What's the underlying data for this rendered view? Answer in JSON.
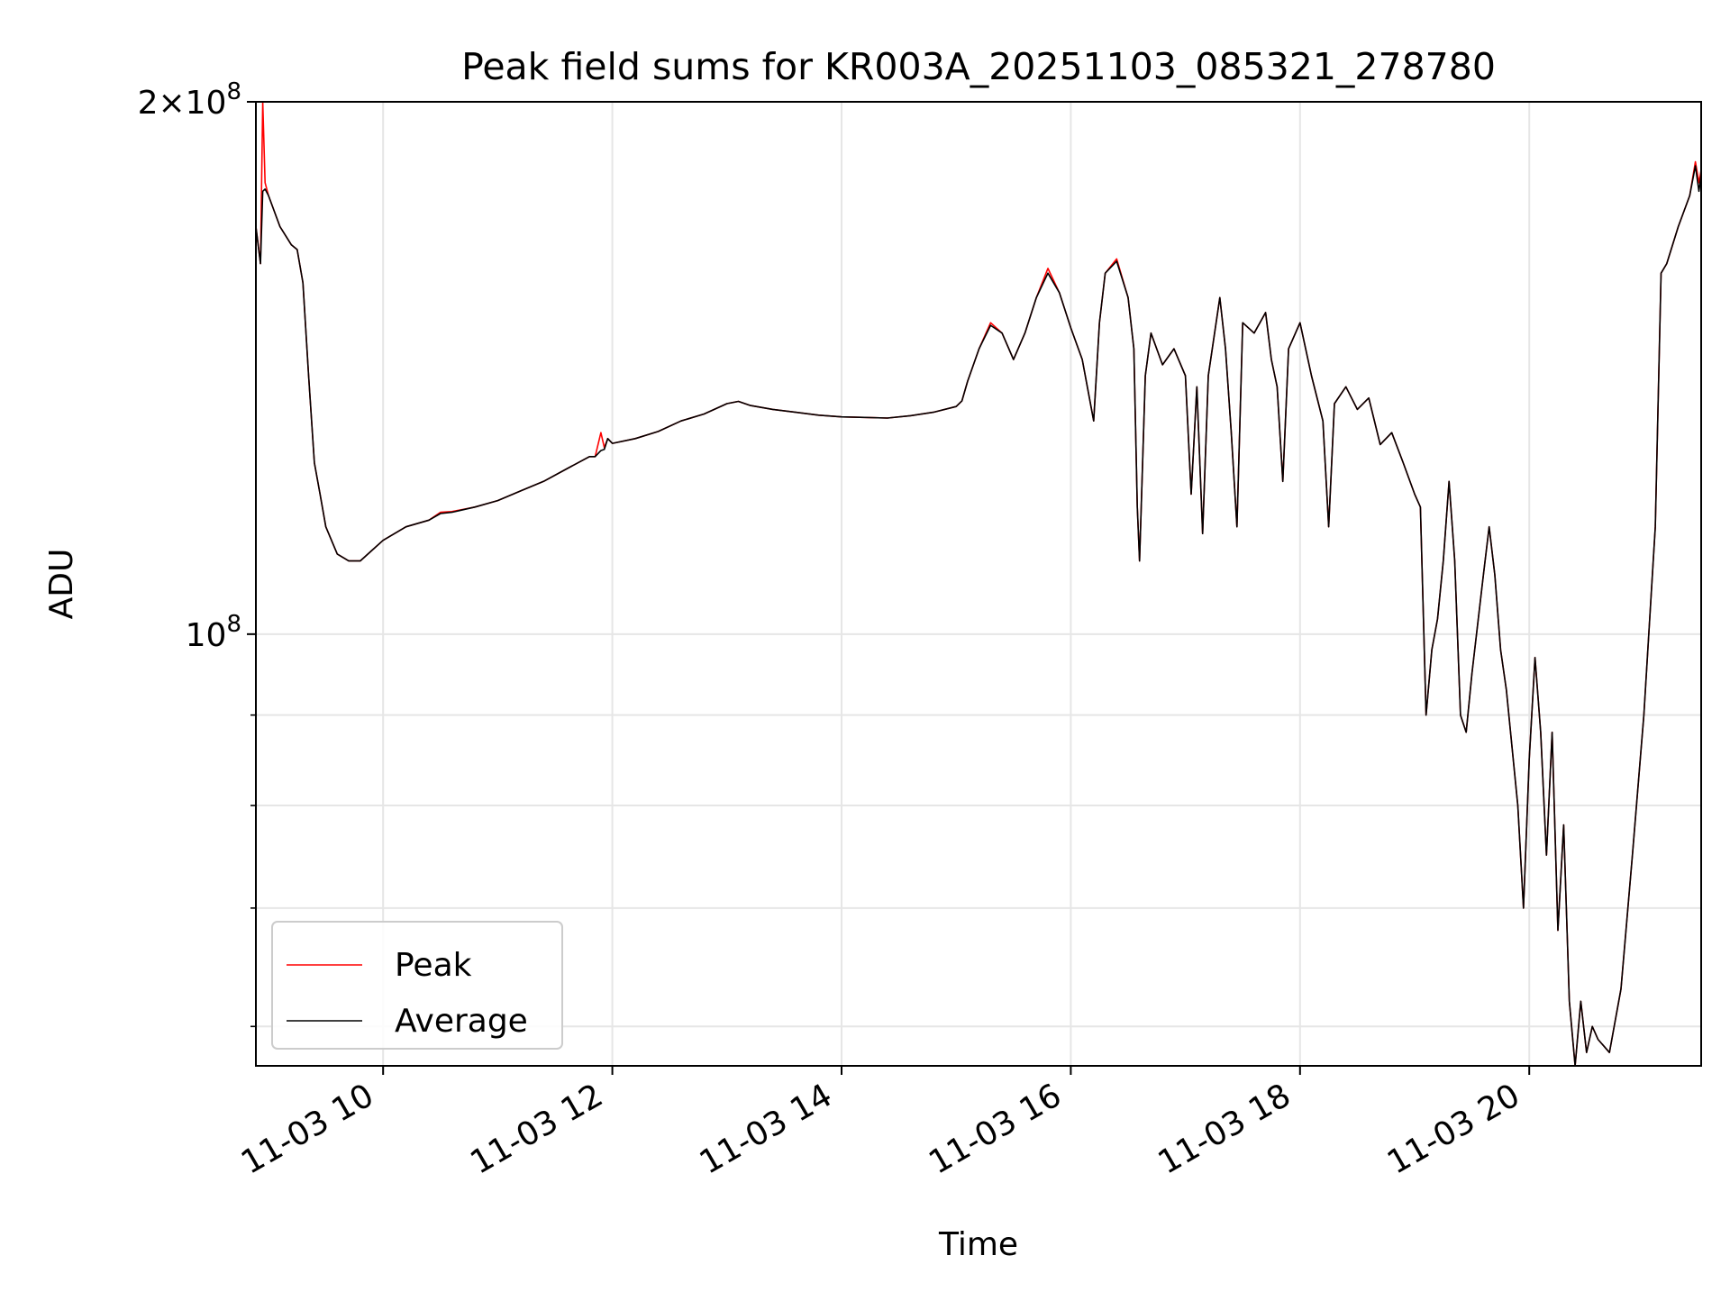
{
  "chart_data": {
    "type": "line",
    "title": "Peak field sums for KR003A_20251103_085321_278780",
    "xlabel": "Time",
    "ylabel": "ADU",
    "yscale": "log",
    "ylim": [
      57000000,
      200000000
    ],
    "xlim_hours": [
      8.89,
      21.5
    ],
    "grid": true,
    "legend_position": "lower-left",
    "x_ticks": [
      {
        "hour": 10,
        "label": "11-03 10"
      },
      {
        "hour": 12,
        "label": "11-03 12"
      },
      {
        "hour": 14,
        "label": "11-03 14"
      },
      {
        "hour": 16,
        "label": "11-03 16"
      },
      {
        "hour": 18,
        "label": "11-03 18"
      },
      {
        "hour": 20,
        "label": "11-03 20"
      }
    ],
    "y_major_ticks": [
      {
        "value": 100000000,
        "mantissa": "",
        "base": "10",
        "exp": "8"
      },
      {
        "value": 200000000,
        "mantissa": "2×",
        "base": "10",
        "exp": "8"
      }
    ],
    "y_minor_ticks": [
      60000000,
      70000000,
      80000000,
      90000000
    ],
    "series": [
      {
        "name": "Peak",
        "color": "#ff0000",
        "points": [
          [
            8.89,
            170000000
          ],
          [
            8.93,
            162000000
          ],
          [
            8.95,
            200000000
          ],
          [
            8.97,
            180000000
          ],
          [
            9.0,
            177000000
          ],
          [
            9.1,
            170000000
          ],
          [
            9.2,
            166000000
          ],
          [
            9.25,
            165000000
          ],
          [
            9.3,
            158000000
          ],
          [
            9.35,
            140000000
          ],
          [
            9.4,
            125000000
          ],
          [
            9.45,
            120000000
          ],
          [
            9.5,
            115000000
          ],
          [
            9.6,
            111000000
          ],
          [
            9.7,
            110000000
          ],
          [
            9.8,
            110000000
          ],
          [
            9.9,
            111500000
          ],
          [
            10.0,
            113000000
          ],
          [
            10.2,
            115000000
          ],
          [
            10.4,
            116000000
          ],
          [
            10.5,
            117200000
          ],
          [
            10.6,
            117300000
          ],
          [
            10.8,
            118000000
          ],
          [
            11.0,
            119000000
          ],
          [
            11.2,
            120500000
          ],
          [
            11.4,
            122000000
          ],
          [
            11.6,
            124000000
          ],
          [
            11.8,
            126000000
          ],
          [
            11.85,
            126000000
          ],
          [
            11.9,
            130000000
          ],
          [
            11.93,
            127500000
          ],
          [
            11.96,
            129000000
          ],
          [
            12.0,
            128200000
          ],
          [
            12.2,
            129000000
          ],
          [
            12.4,
            130200000
          ],
          [
            12.6,
            132000000
          ],
          [
            12.8,
            133200000
          ],
          [
            13.0,
            135000000
          ],
          [
            13.1,
            135400000
          ],
          [
            13.2,
            134700000
          ],
          [
            13.4,
            134000000
          ],
          [
            13.6,
            133500000
          ],
          [
            13.8,
            133000000
          ],
          [
            14.0,
            132700000
          ],
          [
            14.2,
            132600000
          ],
          [
            14.4,
            132500000
          ],
          [
            14.6,
            132900000
          ],
          [
            14.8,
            133500000
          ],
          [
            15.0,
            134500000
          ],
          [
            15.05,
            135500000
          ],
          [
            15.1,
            139000000
          ],
          [
            15.2,
            145000000
          ],
          [
            15.3,
            150000000
          ],
          [
            15.4,
            148000000
          ],
          [
            15.5,
            143000000
          ],
          [
            15.6,
            148000000
          ],
          [
            15.7,
            155000000
          ],
          [
            15.8,
            161000000
          ],
          [
            15.9,
            156000000
          ],
          [
            16.0,
            149000000
          ],
          [
            16.1,
            143000000
          ],
          [
            16.2,
            132000000
          ],
          [
            16.25,
            150000000
          ],
          [
            16.3,
            160000000
          ],
          [
            16.4,
            163000000
          ],
          [
            16.5,
            155000000
          ],
          [
            16.55,
            145000000
          ],
          [
            16.58,
            118000000
          ],
          [
            16.6,
            110000000
          ],
          [
            16.65,
            140000000
          ],
          [
            16.7,
            148000000
          ],
          [
            16.8,
            142000000
          ],
          [
            16.9,
            145000000
          ],
          [
            17.0,
            140000000
          ],
          [
            17.05,
            120000000
          ],
          [
            17.1,
            138000000
          ],
          [
            17.15,
            114000000
          ],
          [
            17.2,
            140000000
          ],
          [
            17.3,
            155000000
          ],
          [
            17.35,
            145000000
          ],
          [
            17.4,
            130000000
          ],
          [
            17.45,
            115000000
          ],
          [
            17.5,
            150000000
          ],
          [
            17.6,
            148000000
          ],
          [
            17.7,
            152000000
          ],
          [
            17.75,
            143000000
          ],
          [
            17.8,
            138000000
          ],
          [
            17.85,
            122000000
          ],
          [
            17.9,
            145000000
          ],
          [
            18.0,
            150000000
          ],
          [
            18.1,
            140000000
          ],
          [
            18.2,
            132000000
          ],
          [
            18.25,
            115000000
          ],
          [
            18.3,
            135000000
          ],
          [
            18.4,
            138000000
          ],
          [
            18.5,
            134000000
          ],
          [
            18.6,
            136000000
          ],
          [
            18.7,
            128000000
          ],
          [
            18.8,
            130000000
          ],
          [
            18.9,
            125000000
          ],
          [
            19.0,
            120000000
          ],
          [
            19.05,
            118000000
          ],
          [
            19.1,
            90000000
          ],
          [
            19.15,
            98000000
          ],
          [
            19.2,
            102000000
          ],
          [
            19.25,
            110000000
          ],
          [
            19.3,
            122000000
          ],
          [
            19.35,
            110000000
          ],
          [
            19.4,
            90000000
          ],
          [
            19.45,
            88000000
          ],
          [
            19.5,
            95000000
          ],
          [
            19.6,
            108000000
          ],
          [
            19.65,
            115000000
          ],
          [
            19.7,
            108000000
          ],
          [
            19.75,
            98000000
          ],
          [
            19.8,
            93000000
          ],
          [
            19.9,
            80000000
          ],
          [
            19.95,
            70000000
          ],
          [
            20.0,
            85000000
          ],
          [
            20.05,
            97000000
          ],
          [
            20.1,
            88000000
          ],
          [
            20.15,
            75000000
          ],
          [
            20.2,
            88000000
          ],
          [
            20.25,
            68000000
          ],
          [
            20.3,
            78000000
          ],
          [
            20.35,
            62000000
          ],
          [
            20.4,
            57000000
          ],
          [
            20.45,
            62000000
          ],
          [
            20.5,
            58000000
          ],
          [
            20.55,
            60000000
          ],
          [
            20.6,
            59000000
          ],
          [
            20.7,
            58000000
          ],
          [
            20.8,
            63000000
          ],
          [
            20.9,
            75000000
          ],
          [
            21.0,
            90000000
          ],
          [
            21.1,
            115000000
          ],
          [
            21.15,
            160000000
          ],
          [
            21.2,
            162000000
          ],
          [
            21.3,
            170000000
          ],
          [
            21.4,
            177000000
          ],
          [
            21.45,
            185000000
          ],
          [
            21.48,
            180000000
          ],
          [
            21.5,
            183000000
          ]
        ]
      },
      {
        "name": "Average",
        "color": "#000000",
        "points": [
          [
            8.89,
            170000000
          ],
          [
            8.93,
            162000000
          ],
          [
            8.95,
            178000000
          ],
          [
            8.97,
            178500000
          ],
          [
            9.0,
            177000000
          ],
          [
            9.1,
            170000000
          ],
          [
            9.2,
            166000000
          ],
          [
            9.25,
            165000000
          ],
          [
            9.3,
            158000000
          ],
          [
            9.35,
            140000000
          ],
          [
            9.4,
            125000000
          ],
          [
            9.45,
            120000000
          ],
          [
            9.5,
            115000000
          ],
          [
            9.6,
            111000000
          ],
          [
            9.7,
            110000000
          ],
          [
            9.8,
            110000000
          ],
          [
            9.9,
            111500000
          ],
          [
            10.0,
            113000000
          ],
          [
            10.2,
            115000000
          ],
          [
            10.4,
            116000000
          ],
          [
            10.5,
            117000000
          ],
          [
            10.6,
            117200000
          ],
          [
            10.8,
            118000000
          ],
          [
            11.0,
            119000000
          ],
          [
            11.2,
            120500000
          ],
          [
            11.4,
            122000000
          ],
          [
            11.6,
            124000000
          ],
          [
            11.8,
            126000000
          ],
          [
            11.85,
            126000000
          ],
          [
            11.9,
            127000000
          ],
          [
            11.93,
            127200000
          ],
          [
            11.96,
            129000000
          ],
          [
            12.0,
            128200000
          ],
          [
            12.2,
            129000000
          ],
          [
            12.4,
            130200000
          ],
          [
            12.6,
            132000000
          ],
          [
            12.8,
            133200000
          ],
          [
            13.0,
            135000000
          ],
          [
            13.1,
            135400000
          ],
          [
            13.2,
            134700000
          ],
          [
            13.4,
            134000000
          ],
          [
            13.6,
            133500000
          ],
          [
            13.8,
            133000000
          ],
          [
            14.0,
            132700000
          ],
          [
            14.2,
            132600000
          ],
          [
            14.4,
            132500000
          ],
          [
            14.6,
            132900000
          ],
          [
            14.8,
            133500000
          ],
          [
            15.0,
            134500000
          ],
          [
            15.05,
            135500000
          ],
          [
            15.1,
            139000000
          ],
          [
            15.2,
            145000000
          ],
          [
            15.3,
            149500000
          ],
          [
            15.4,
            148000000
          ],
          [
            15.5,
            143000000
          ],
          [
            15.6,
            148000000
          ],
          [
            15.7,
            155000000
          ],
          [
            15.8,
            160000000
          ],
          [
            15.9,
            156000000
          ],
          [
            16.0,
            149000000
          ],
          [
            16.1,
            143000000
          ],
          [
            16.2,
            132000000
          ],
          [
            16.25,
            150000000
          ],
          [
            16.3,
            160000000
          ],
          [
            16.4,
            162500000
          ],
          [
            16.5,
            155000000
          ],
          [
            16.55,
            145000000
          ],
          [
            16.58,
            118000000
          ],
          [
            16.6,
            110000000
          ],
          [
            16.65,
            140000000
          ],
          [
            16.7,
            148000000
          ],
          [
            16.8,
            142000000
          ],
          [
            16.9,
            145000000
          ],
          [
            17.0,
            140000000
          ],
          [
            17.05,
            120000000
          ],
          [
            17.1,
            138000000
          ],
          [
            17.15,
            114000000
          ],
          [
            17.2,
            140000000
          ],
          [
            17.3,
            155000000
          ],
          [
            17.35,
            145000000
          ],
          [
            17.4,
            130000000
          ],
          [
            17.45,
            115000000
          ],
          [
            17.5,
            150000000
          ],
          [
            17.6,
            148000000
          ],
          [
            17.7,
            152000000
          ],
          [
            17.75,
            143000000
          ],
          [
            17.8,
            138000000
          ],
          [
            17.85,
            122000000
          ],
          [
            17.9,
            145000000
          ],
          [
            18.0,
            150000000
          ],
          [
            18.1,
            140000000
          ],
          [
            18.2,
            132000000
          ],
          [
            18.25,
            115000000
          ],
          [
            18.3,
            135000000
          ],
          [
            18.4,
            138000000
          ],
          [
            18.5,
            134000000
          ],
          [
            18.6,
            136000000
          ],
          [
            18.7,
            128000000
          ],
          [
            18.8,
            130000000
          ],
          [
            18.9,
            125000000
          ],
          [
            19.0,
            120000000
          ],
          [
            19.05,
            118000000
          ],
          [
            19.1,
            90000000
          ],
          [
            19.15,
            98000000
          ],
          [
            19.2,
            102000000
          ],
          [
            19.25,
            110000000
          ],
          [
            19.3,
            122000000
          ],
          [
            19.35,
            110000000
          ],
          [
            19.4,
            90000000
          ],
          [
            19.45,
            88000000
          ],
          [
            19.5,
            95000000
          ],
          [
            19.6,
            108000000
          ],
          [
            19.65,
            115000000
          ],
          [
            19.7,
            108000000
          ],
          [
            19.75,
            98000000
          ],
          [
            19.8,
            93000000
          ],
          [
            19.9,
            80000000
          ],
          [
            19.95,
            70000000
          ],
          [
            20.0,
            85000000
          ],
          [
            20.05,
            97000000
          ],
          [
            20.1,
            88000000
          ],
          [
            20.15,
            75000000
          ],
          [
            20.2,
            88000000
          ],
          [
            20.25,
            68000000
          ],
          [
            20.3,
            78000000
          ],
          [
            20.35,
            62000000
          ],
          [
            20.4,
            57000000
          ],
          [
            20.45,
            62000000
          ],
          [
            20.5,
            58000000
          ],
          [
            20.55,
            60000000
          ],
          [
            20.6,
            59000000
          ],
          [
            20.7,
            58000000
          ],
          [
            20.8,
            63000000
          ],
          [
            20.9,
            75000000
          ],
          [
            21.0,
            90000000
          ],
          [
            21.1,
            115000000
          ],
          [
            21.15,
            160000000
          ],
          [
            21.2,
            162000000
          ],
          [
            21.3,
            170000000
          ],
          [
            21.4,
            177000000
          ],
          [
            21.45,
            184000000
          ],
          [
            21.48,
            178000000
          ],
          [
            21.5,
            182000000
          ]
        ]
      }
    ]
  }
}
